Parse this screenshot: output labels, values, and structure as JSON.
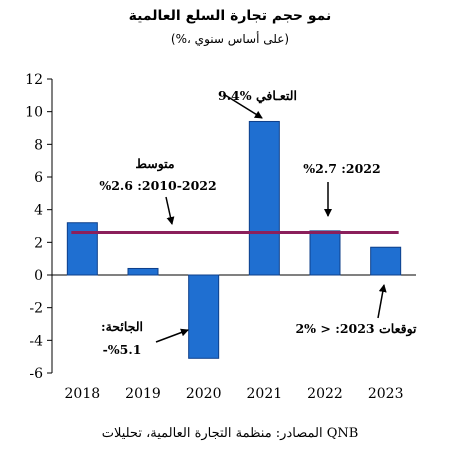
{
  "header": {
    "title": "نمو حجم تجارة السلع العالمية",
    "subtitle": "(%، على أساس سنوي)"
  },
  "footer": {
    "source": "المصادر: منظمة التجارة العالمية، تحليلات QNB"
  },
  "colors": {
    "bar_fill": "#1f6fd1",
    "bar_stroke": "#0d3f8a",
    "average_line": "#8b1f5b",
    "axis": "#000000"
  },
  "chart_data": {
    "type": "bar",
    "categories": [
      "2018",
      "2019",
      "2020",
      "2021",
      "2022",
      "2023"
    ],
    "values": [
      3.2,
      0.4,
      -5.1,
      9.4,
      2.7,
      1.7
    ],
    "ylim": [
      -6,
      12
    ],
    "yticks": [
      -6,
      -4,
      -2,
      0,
      2,
      4,
      6,
      8,
      10,
      12
    ],
    "reference_line": {
      "value": 2.6,
      "label": "متوسط 2010-2022: %2.6"
    },
    "annotations": [
      {
        "line1": "التعـافي %9.4"
      },
      {
        "line1": "متوسط",
        "line2": "2010-2022: %2.6"
      },
      {
        "line1": "2022: %2.7"
      },
      {
        "line1": "الجائحة:",
        "line2": "%5.1-"
      },
      {
        "line1": "توقعات 2023: < %2"
      }
    ],
    "grid": false,
    "legend": "none"
  }
}
